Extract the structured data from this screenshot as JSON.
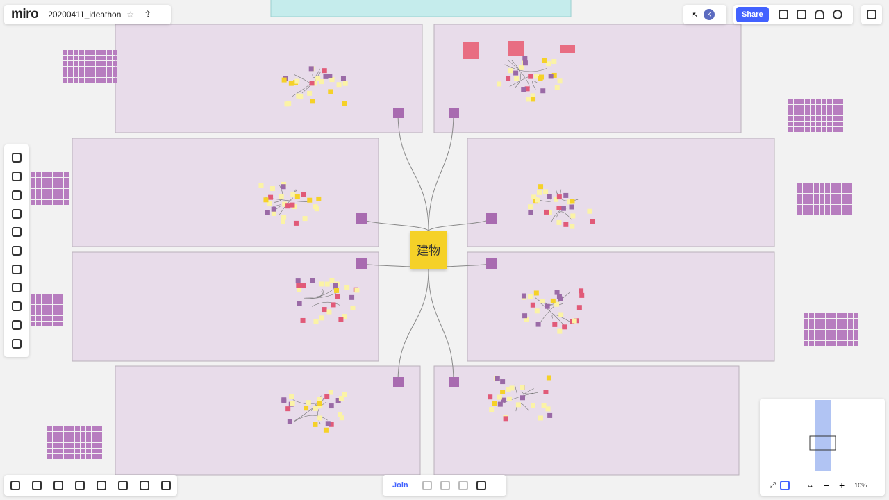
{
  "header": {
    "logo": "miro",
    "board_title": "20200411_ideathon"
  },
  "toolbar": {
    "share": "Share",
    "avatar": "K"
  },
  "board": {
    "center_note": "建物"
  },
  "footer": {
    "join": "Join",
    "zoom": "10%"
  }
}
